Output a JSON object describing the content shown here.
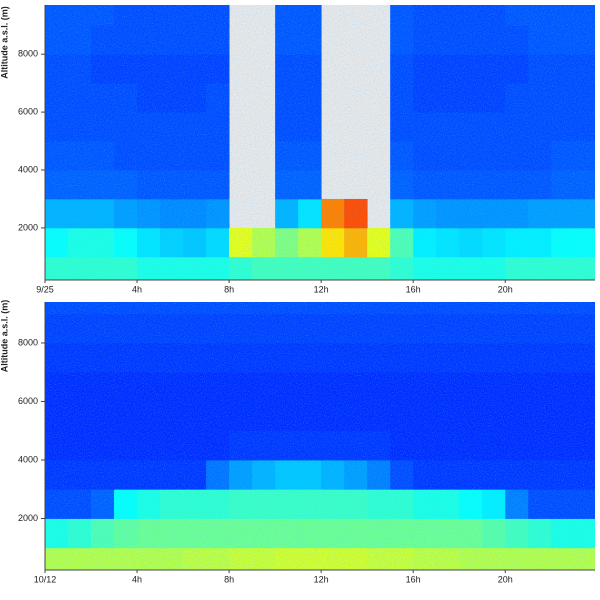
{
  "chart_data": [
    {
      "type": "heatmap",
      "ylabel": "Altitude a.s.l. (m)",
      "colormap": "jet",
      "missing_color": "#e8e8e8",
      "xbins": [
        0,
        1,
        2,
        3,
        4,
        5,
        6,
        7,
        8,
        9,
        10,
        11,
        12,
        13,
        14,
        15,
        16,
        17,
        18,
        19,
        20,
        21,
        22,
        23,
        24
      ],
      "ybins": [
        0,
        1000,
        2000,
        3000,
        4000,
        5000,
        6000,
        7000,
        8000,
        9000,
        10000
      ],
      "z": [
        [
          0.42,
          0.42,
          0.42,
          0.42,
          0.4,
          0.4,
          0.4,
          0.4,
          0.42,
          0.44,
          0.44,
          0.44,
          0.44,
          0.44,
          0.44,
          0.42,
          0.4,
          0.4,
          0.4,
          0.4,
          0.42,
          0.42,
          0.42,
          0.42
        ],
        [
          0.38,
          0.4,
          0.4,
          0.38,
          0.35,
          0.33,
          0.32,
          0.34,
          0.6,
          0.55,
          0.5,
          0.55,
          0.65,
          0.7,
          0.6,
          0.45,
          0.36,
          0.35,
          0.34,
          0.35,
          0.36,
          0.36,
          0.38,
          0.38
        ],
        [
          0.3,
          0.3,
          0.3,
          0.28,
          0.27,
          0.26,
          0.26,
          0.27,
          null,
          null,
          0.3,
          0.35,
          0.75,
          0.8,
          null,
          0.3,
          0.28,
          0.27,
          0.27,
          0.27,
          0.27,
          0.28,
          0.28,
          0.28
        ],
        [
          0.22,
          0.22,
          0.22,
          0.22,
          0.21,
          0.21,
          0.21,
          0.21,
          null,
          null,
          0.22,
          0.22,
          null,
          null,
          null,
          0.22,
          0.21,
          0.21,
          0.21,
          0.21,
          0.21,
          0.21,
          0.22,
          0.22
        ],
        [
          0.21,
          0.21,
          0.21,
          0.2,
          0.2,
          0.2,
          0.2,
          0.2,
          null,
          null,
          0.21,
          0.21,
          null,
          null,
          null,
          0.21,
          0.2,
          0.2,
          0.2,
          0.2,
          0.2,
          0.2,
          0.21,
          0.21
        ],
        [
          0.2,
          0.2,
          0.2,
          0.2,
          0.2,
          0.2,
          0.2,
          0.2,
          null,
          null,
          0.2,
          0.2,
          null,
          null,
          null,
          0.2,
          0.2,
          0.2,
          0.2,
          0.2,
          0.2,
          0.2,
          0.2,
          0.2
        ],
        [
          0.2,
          0.2,
          0.2,
          0.2,
          0.19,
          0.19,
          0.19,
          0.2,
          null,
          null,
          0.2,
          0.2,
          null,
          null,
          null,
          0.2,
          0.19,
          0.19,
          0.19,
          0.19,
          0.2,
          0.2,
          0.2,
          0.2
        ],
        [
          0.2,
          0.2,
          0.19,
          0.19,
          0.19,
          0.19,
          0.19,
          0.19,
          null,
          null,
          0.2,
          0.2,
          null,
          null,
          null,
          0.2,
          0.19,
          0.19,
          0.19,
          0.19,
          0.19,
          0.2,
          0.2,
          0.2
        ],
        [
          0.21,
          0.21,
          0.2,
          0.2,
          0.2,
          0.2,
          0.2,
          0.2,
          null,
          null,
          0.21,
          0.21,
          null,
          null,
          null,
          0.21,
          0.2,
          0.2,
          0.2,
          0.2,
          0.2,
          0.21,
          0.21,
          0.21
        ],
        [
          0.21,
          0.21,
          0.21,
          0.2,
          0.2,
          0.2,
          0.2,
          0.2,
          null,
          null,
          0.21,
          0.21,
          null,
          null,
          null,
          0.21,
          0.2,
          0.2,
          0.2,
          0.2,
          0.21,
          0.21,
          0.21,
          0.21
        ]
      ],
      "xlim": [
        0,
        23.9
      ],
      "ylim": [
        200,
        9700
      ],
      "xticks": [
        {
          "value": 0,
          "label": "9/25"
        },
        {
          "value": 4,
          "label": "4h"
        },
        {
          "value": 8,
          "label": "8h"
        },
        {
          "value": 12,
          "label": "12h"
        },
        {
          "value": 16,
          "label": "16h"
        },
        {
          "value": 20,
          "label": "20h"
        }
      ],
      "yticks": [
        2000,
        4000,
        6000,
        8000
      ]
    },
    {
      "type": "heatmap",
      "ylabel": "Altitude a.s.l. (m)",
      "colormap": "jet",
      "missing_color": "#e8e8e8",
      "xbins": [
        0,
        1,
        2,
        3,
        4,
        5,
        6,
        7,
        8,
        9,
        10,
        11,
        12,
        13,
        14,
        15,
        16,
        17,
        18,
        19,
        20,
        21,
        22,
        23,
        24
      ],
      "ybins": [
        0,
        1000,
        2000,
        3000,
        4000,
        5000,
        6000,
        7000,
        8000,
        9000,
        10000
      ],
      "z": [
        [
          0.55,
          0.55,
          0.55,
          0.55,
          0.55,
          0.55,
          0.56,
          0.56,
          0.57,
          0.57,
          0.58,
          0.58,
          0.58,
          0.58,
          0.57,
          0.57,
          0.56,
          0.56,
          0.55,
          0.55,
          0.55,
          0.55,
          0.55,
          0.55
        ],
        [
          0.4,
          0.42,
          0.45,
          0.47,
          0.48,
          0.48,
          0.48,
          0.48,
          0.48,
          0.48,
          0.48,
          0.48,
          0.48,
          0.48,
          0.48,
          0.48,
          0.48,
          0.48,
          0.48,
          0.46,
          0.44,
          0.42,
          0.4,
          0.4
        ],
        [
          0.2,
          0.2,
          0.22,
          0.38,
          0.4,
          0.42,
          0.42,
          0.42,
          0.43,
          0.43,
          0.43,
          0.43,
          0.43,
          0.43,
          0.42,
          0.42,
          0.4,
          0.4,
          0.38,
          0.36,
          0.25,
          0.2,
          0.2,
          0.2
        ],
        [
          0.18,
          0.18,
          0.18,
          0.18,
          0.18,
          0.18,
          0.18,
          0.24,
          0.28,
          0.3,
          0.32,
          0.32,
          0.3,
          0.28,
          0.25,
          0.2,
          0.18,
          0.18,
          0.18,
          0.18,
          0.18,
          0.18,
          0.18,
          0.18
        ],
        [
          0.17,
          0.17,
          0.17,
          0.17,
          0.17,
          0.17,
          0.17,
          0.17,
          0.18,
          0.18,
          0.18,
          0.18,
          0.18,
          0.18,
          0.18,
          0.17,
          0.17,
          0.17,
          0.17,
          0.17,
          0.17,
          0.17,
          0.17,
          0.17
        ],
        [
          0.17,
          0.17,
          0.17,
          0.17,
          0.17,
          0.17,
          0.17,
          0.17,
          0.17,
          0.17,
          0.17,
          0.17,
          0.17,
          0.17,
          0.17,
          0.17,
          0.17,
          0.17,
          0.17,
          0.17,
          0.17,
          0.17,
          0.17,
          0.17
        ],
        [
          0.17,
          0.17,
          0.17,
          0.17,
          0.17,
          0.17,
          0.17,
          0.17,
          0.17,
          0.17,
          0.17,
          0.17,
          0.17,
          0.17,
          0.17,
          0.17,
          0.17,
          0.17,
          0.17,
          0.17,
          0.17,
          0.17,
          0.17,
          0.17
        ],
        [
          0.18,
          0.18,
          0.18,
          0.18,
          0.18,
          0.18,
          0.18,
          0.18,
          0.18,
          0.18,
          0.18,
          0.18,
          0.18,
          0.18,
          0.18,
          0.18,
          0.18,
          0.18,
          0.18,
          0.18,
          0.18,
          0.18,
          0.18,
          0.18
        ],
        [
          0.19,
          0.19,
          0.19,
          0.19,
          0.19,
          0.19,
          0.19,
          0.19,
          0.19,
          0.19,
          0.19,
          0.19,
          0.19,
          0.19,
          0.19,
          0.19,
          0.19,
          0.19,
          0.19,
          0.19,
          0.19,
          0.19,
          0.19,
          0.19
        ],
        [
          0.2,
          0.2,
          0.2,
          0.2,
          0.2,
          0.2,
          0.2,
          0.2,
          0.2,
          0.2,
          0.2,
          0.2,
          0.2,
          0.2,
          0.2,
          0.2,
          0.2,
          0.2,
          0.2,
          0.2,
          0.2,
          0.2,
          0.2,
          0.2
        ]
      ],
      "xlim": [
        0,
        23.9
      ],
      "ylim": [
        240,
        9400
      ],
      "xticks": [
        {
          "value": 0,
          "label": "10/12"
        },
        {
          "value": 4,
          "label": "4h"
        },
        {
          "value": 8,
          "label": "8h"
        },
        {
          "value": 12,
          "label": "12h"
        },
        {
          "value": 16,
          "label": "16h"
        },
        {
          "value": 20,
          "label": "20h"
        }
      ],
      "yticks": [
        2000,
        4000,
        6000,
        8000
      ]
    }
  ]
}
